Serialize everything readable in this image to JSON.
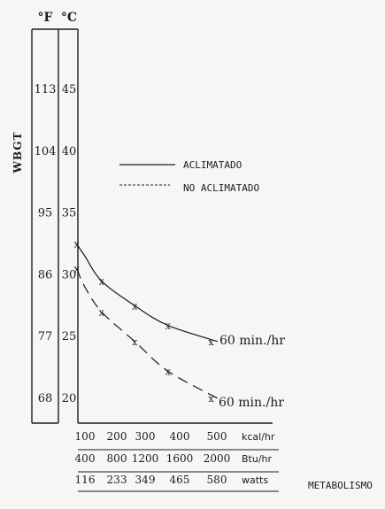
{
  "chart_data": {
    "type": "line",
    "ylabel": "WBGT",
    "y_axes": [
      {
        "unit": "°F",
        "ticks": [
          "113",
          "104",
          "95",
          "86",
          "77",
          "68"
        ]
      },
      {
        "unit": "°C",
        "ticks": [
          "45",
          "40",
          "35",
          "30",
          "25",
          "20"
        ]
      }
    ],
    "ylim": [
      17,
      50
    ],
    "xlim": [
      70,
      540
    ],
    "x_rows": [
      {
        "ticks": [
          "100",
          "200",
          "300",
          "400",
          "500"
        ],
        "unit": "kcal/hr"
      },
      {
        "ticks": [
          "400",
          "800",
          "1200",
          "1600",
          "2000"
        ],
        "unit": "Btu/hr"
      },
      {
        "ticks": [
          "116",
          "233",
          "349",
          "465",
          "580"
        ],
        "unit": "watts"
      }
    ],
    "x_tick_values": [
      100,
      200,
      300,
      400,
      500
    ],
    "xlabel": "METABOLISMO",
    "grid": false,
    "legend": "right",
    "series": [
      {
        "name": "ACLIMATADO",
        "style": "solid",
        "x": [
          75,
          100,
          150,
          250,
          350,
          500
        ],
        "y": [
          32.5,
          31.5,
          29.5,
          27.5,
          25.9,
          24.6
        ],
        "marker_x": [
          75,
          150,
          250,
          350,
          480
        ],
        "marker_y": [
          32.5,
          29.5,
          27.5,
          25.9,
          24.6
        ],
        "annotation": "60 min./hr"
      },
      {
        "name": "NO ACLIMATADO",
        "style": "dashed",
        "x": [
          75,
          100,
          150,
          250,
          350,
          500
        ],
        "y": [
          30.5,
          29,
          27,
          24.6,
          22.2,
          20
        ],
        "marker_x": [
          75,
          150,
          250,
          350,
          480
        ],
        "marker_y": [
          30.5,
          27,
          24.6,
          22.2,
          20
        ],
        "annotation": "60 min./hr"
      }
    ]
  }
}
